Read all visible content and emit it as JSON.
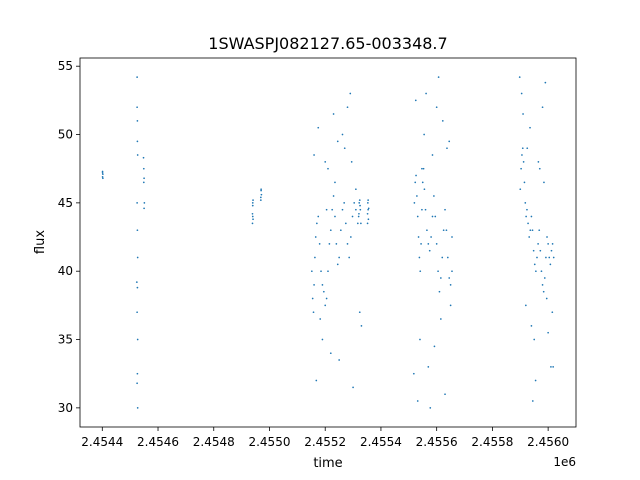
{
  "chart_data": {
    "type": "scatter",
    "title": "1SWASPJ082127.65-003348.7",
    "xlabel": "time",
    "ylabel": "flux",
    "x_offset_label": "1e6",
    "xlim": [
      2454320,
      2456100
    ],
    "ylim": [
      28.6,
      55.6
    ],
    "x_ticks": [
      {
        "value": 2454400,
        "label": "2.4544"
      },
      {
        "value": 2454600,
        "label": "2.4546"
      },
      {
        "value": 2454800,
        "label": "2.4548"
      },
      {
        "value": 2455000,
        "label": "2.4550"
      },
      {
        "value": 2455200,
        "label": "2.4552"
      },
      {
        "value": 2455400,
        "label": "2.4554"
      },
      {
        "value": 2455600,
        "label": "2.4556"
      },
      {
        "value": 2455800,
        "label": "2.4558"
      },
      {
        "value": 2456000,
        "label": "2.4560"
      }
    ],
    "y_ticks": [
      {
        "value": 30,
        "label": "30"
      },
      {
        "value": 35,
        "label": "35"
      },
      {
        "value": 40,
        "label": "40"
      },
      {
        "value": 45,
        "label": "45"
      },
      {
        "value": 50,
        "label": "50"
      },
      {
        "value": 55,
        "label": "55"
      }
    ],
    "grid": false,
    "marker_color": "#1f77b4",
    "series": [
      {
        "x": [
          2454401,
          2454401,
          2454402,
          2454402,
          2454401,
          2454525,
          2454525,
          2454526,
          2454526,
          2454527,
          2454525,
          2454526,
          2454527,
          2454524,
          2454526,
          2454525,
          2454527,
          2454526,
          2454525,
          2454527,
          2454548,
          2454549,
          2454550,
          2454549,
          2454551,
          2454550,
          2454939,
          2454940,
          2454940,
          2454941,
          2454939,
          2454941,
          2454940,
          2454969,
          2454970,
          2454971,
          2454970,
          2454969,
          2455152,
          2455155,
          2455158,
          2455160,
          2455163,
          2455166,
          2455170,
          2455175,
          2455180,
          2455185,
          2455190,
          2455195,
          2455200,
          2455205,
          2455210,
          2455215,
          2455220,
          2455225,
          2455230,
          2455235,
          2455240,
          2455245,
          2455250,
          2455256,
          2455262,
          2455268,
          2455274,
          2455280,
          2455286,
          2455292,
          2455298,
          2455304,
          2455310,
          2455317,
          2455324,
          2455330,
          2455160,
          2455175,
          2455190,
          2455210,
          2455230,
          2455250,
          2455270,
          2455290,
          2455310,
          2455168,
          2455200,
          2455245,
          2455280,
          2455220,
          2455300,
          2455182,
          2455262,
          2455205,
          2455295,
          2455235,
          2455320,
          2455322,
          2455324,
          2455326,
          2455328,
          2455321,
          2455325,
          2455352,
          2455353,
          2455354,
          2455355,
          2455356,
          2455352,
          2455354,
          2455520,
          2455523,
          2455526,
          2455529,
          2455532,
          2455535,
          2455538,
          2455541,
          2455544,
          2455547,
          2455550,
          2455553,
          2455556,
          2455560,
          2455565,
          2455570,
          2455575,
          2455580,
          2455585,
          2455590,
          2455595,
          2455600,
          2455605,
          2455610,
          2455615,
          2455620,
          2455625,
          2455630,
          2455635,
          2455640,
          2455645,
          2455650,
          2455655,
          2455525,
          2455540,
          2455555,
          2455570,
          2455585,
          2455600,
          2455615,
          2455630,
          2455645,
          2455532,
          2455562,
          2455592,
          2455622,
          2455650,
          2455547,
          2455577,
          2455607,
          2455637,
          2455518,
          2455655,
          2455900,
          2455903,
          2455906,
          2455909,
          2455912,
          2455915,
          2455918,
          2455921,
          2455924,
          2455928,
          2455932,
          2455936,
          2455940,
          2455944,
          2455948,
          2455952,
          2455956,
          2455960,
          2455964,
          2455968,
          2455972,
          2455976,
          2455980,
          2455984,
          2455988,
          2455992,
          2455996,
          2456000,
          2456004,
          2456008,
          2456012,
          2456016,
          2456020,
          2455905,
          2455920,
          2455935,
          2455950,
          2455965,
          2455980,
          2455995,
          2456010,
          2455910,
          2455940,
          2455970,
          2456000,
          2455925,
          2455955,
          2455985,
          2456015,
          2455898,
          2455945,
          2455990,
          2456018
        ],
        "y": [
          47.2,
          46.9,
          47.1,
          46.8,
          47.3,
          54.2,
          52.0,
          51.0,
          49.5,
          48.5,
          45.0,
          43.0,
          41.0,
          39.2,
          38.8,
          37.0,
          35.0,
          32.5,
          31.8,
          30.0,
          48.3,
          47.5,
          46.8,
          46.5,
          45.0,
          44.6,
          43.5,
          44.0,
          44.8,
          45.2,
          44.2,
          43.8,
          45.0,
          45.4,
          45.9,
          45.6,
          46.0,
          45.2,
          40.0,
          38.0,
          37.0,
          39.0,
          41.0,
          42.5,
          43.5,
          44.0,
          42.0,
          40.0,
          39.0,
          38.5,
          37.5,
          38.0,
          40.0,
          42.0,
          43.0,
          44.5,
          45.5,
          44.0,
          42.0,
          40.5,
          41.0,
          43.0,
          44.5,
          45.0,
          43.5,
          42.0,
          41.0,
          42.5,
          44.0,
          45.0,
          44.5,
          43.5,
          37.0,
          36.0,
          48.5,
          50.5,
          35.0,
          47.5,
          51.5,
          33.5,
          49.0,
          53.0,
          46.0,
          32.0,
          48.0,
          49.5,
          52.0,
          34.0,
          31.5,
          36.5,
          50.0,
          44.5,
          48.0,
          46.5,
          44.0,
          45.0,
          45.2,
          44.5,
          43.5,
          44.2,
          44.8,
          44.2,
          45.0,
          44.5,
          43.8,
          44.6,
          43.5,
          45.2,
          45.0,
          46.5,
          47.0,
          45.5,
          44.0,
          42.5,
          41.0,
          40.0,
          42.0,
          44.5,
          46.5,
          47.5,
          46.0,
          44.5,
          43.0,
          42.0,
          41.5,
          42.5,
          44.0,
          45.5,
          44.0,
          42.0,
          40.0,
          38.5,
          39.5,
          41.0,
          43.0,
          44.5,
          43.0,
          41.0,
          39.5,
          39.0,
          40.0,
          52.5,
          35.0,
          50.0,
          33.0,
          48.5,
          52.0,
          36.5,
          31.0,
          49.5,
          30.5,
          53.0,
          34.5,
          51.0,
          37.5,
          47.5,
          30.0,
          54.2,
          49.0,
          32.5,
          42.5,
          46.0,
          47.5,
          48.5,
          49.0,
          48.0,
          46.5,
          45.0,
          44.0,
          44.5,
          43.5,
          42.5,
          43.0,
          44.0,
          43.0,
          41.5,
          40.5,
          40.0,
          41.0,
          42.0,
          43.0,
          41.5,
          40.0,
          39.0,
          38.5,
          39.5,
          41.0,
          42.5,
          42.0,
          41.0,
          40.5,
          41.5,
          42.0,
          41.0,
          53.0,
          37.5,
          50.5,
          35.0,
          48.0,
          52.0,
          38.0,
          33.0,
          51.5,
          36.0,
          47.5,
          35.5,
          49.0,
          32.0,
          46.5,
          37.0,
          54.2,
          30.5,
          53.8,
          33.0
        ]
      }
    ]
  }
}
